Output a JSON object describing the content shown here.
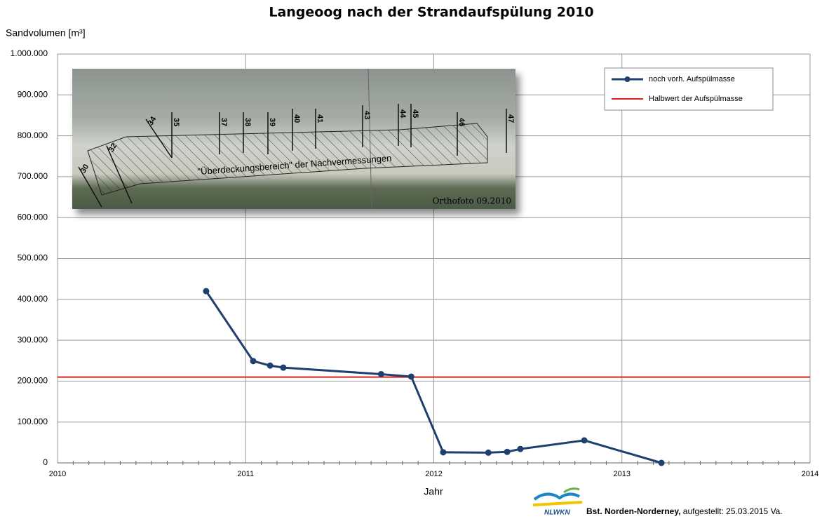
{
  "chart_data": {
    "type": "line",
    "title": "Langeoog  nach der Strandaufspülung 2010",
    "y_label": "Sandvolumen [m³]",
    "x_label": "Jahr",
    "x": [
      2010.79,
      2011.04,
      2011.13,
      2011.2,
      2011.72,
      2011.88,
      2012.05,
      2012.29,
      2012.39,
      2012.46,
      2012.8,
      2013.21
    ],
    "series": [
      {
        "name": "noch vorh. Aufspülmasse",
        "color": "#1f3f6e",
        "values": [
          420000,
          249000,
          238000,
          233000,
          217000,
          211000,
          26000,
          25000,
          27000,
          34000,
          55000,
          0
        ]
      }
    ],
    "reference_line": {
      "name": "Halbwert der Aufspülmasse",
      "color": "#e0201b",
      "value": 210000
    },
    "xlim": [
      2010,
      2014
    ],
    "xticks": [
      2010,
      2011,
      2012,
      2013,
      2014
    ],
    "ylim": [
      0,
      1000000
    ],
    "yticks": [
      0,
      {
        "value": 100000,
        "label": "100.000"
      },
      {
        "value": 200000,
        "label": "200.000"
      },
      {
        "value": 300000,
        "label": "300.000"
      },
      {
        "value": 400000,
        "label": "400.000"
      },
      {
        "value": 500000,
        "label": "500.000"
      },
      {
        "value": 600000,
        "label": "600.000"
      },
      {
        "value": 700000,
        "label": "700.000"
      },
      {
        "value": 800000,
        "label": "800.000"
      },
      {
        "value": 900000,
        "label": "900.000"
      },
      {
        "value": 1000000,
        "label": "1.000.000"
      }
    ],
    "grid": true,
    "legend": "upper right"
  },
  "inset": {
    "transects": [
      "30",
      "32",
      "34",
      "35",
      "37",
      "38",
      "39",
      "40",
      "41",
      "43",
      "44",
      "45",
      "46",
      "47"
    ],
    "area_label": "\"Überdeckungsbereich\" der Nachvermessungen",
    "caption": "Orthofoto  09.2010"
  },
  "footer": {
    "logo": "NLWKN",
    "org": "Bst. Norden-Norderney,",
    "note": " aufgestellt: 25.03.2015 Va."
  }
}
